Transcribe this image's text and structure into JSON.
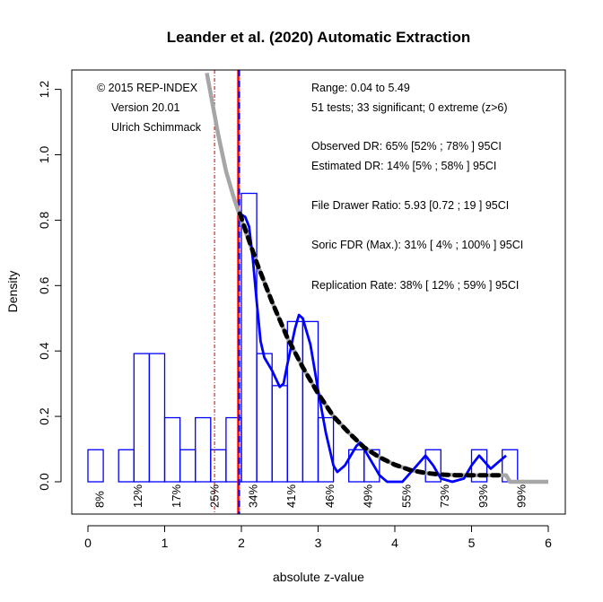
{
  "chart_data": {
    "type": "histogram",
    "title": "Leander et al. (2020) Automatic Extraction",
    "xlabel": "absolute z-value",
    "ylabel": "Density",
    "xlim": [
      0,
      6
    ],
    "ylim": [
      -0.1,
      1.25
    ],
    "xticks": [
      0,
      1,
      2,
      3,
      4,
      5,
      6
    ],
    "yticks": [
      0.0,
      0.2,
      0.4,
      0.6,
      0.8,
      1.0,
      1.2
    ],
    "ytick_labels": [
      "0.0",
      "0.2",
      "0.4",
      "0.6",
      "0.8",
      "1.0",
      "1.2"
    ],
    "bin_width": 0.2,
    "bins": [
      {
        "x0": 0.0,
        "density": 0.098
      },
      {
        "x0": 0.4,
        "density": 0.098
      },
      {
        "x0": 0.6,
        "density": 0.392
      },
      {
        "x0": 0.8,
        "density": 0.392
      },
      {
        "x0": 1.0,
        "density": 0.196
      },
      {
        "x0": 1.2,
        "density": 0.098
      },
      {
        "x0": 1.4,
        "density": 0.196
      },
      {
        "x0": 1.6,
        "density": 0.098
      },
      {
        "x0": 1.8,
        "density": 0.196
      },
      {
        "x0": 2.0,
        "density": 0.882
      },
      {
        "x0": 2.2,
        "density": 0.392
      },
      {
        "x0": 2.4,
        "density": 0.294
      },
      {
        "x0": 2.6,
        "density": 0.49
      },
      {
        "x0": 2.8,
        "density": 0.49
      },
      {
        "x0": 3.0,
        "density": 0.196
      },
      {
        "x0": 3.4,
        "density": 0.098
      },
      {
        "x0": 3.6,
        "density": 0.098
      },
      {
        "x0": 4.4,
        "density": 0.098
      },
      {
        "x0": 5.0,
        "density": 0.098
      },
      {
        "x0": 5.4,
        "density": 0.098
      }
    ],
    "series": [
      {
        "name": "z-curve fit",
        "color": "#a6a6a6",
        "x": [
          1.55,
          1.7,
          1.8,
          1.9,
          2.0,
          2.2,
          2.4,
          2.6,
          2.8,
          3.0,
          3.2,
          3.4,
          3.6,
          3.8,
          4.0,
          4.2,
          4.4,
          4.6,
          5.0,
          5.45,
          5.5,
          6.0
        ],
        "y": [
          1.25,
          1.06,
          0.95,
          0.87,
          0.8,
          0.67,
          0.55,
          0.44,
          0.35,
          0.27,
          0.2,
          0.15,
          0.105,
          0.075,
          0.052,
          0.036,
          0.027,
          0.022,
          0.02,
          0.02,
          0.0,
          0.0
        ]
      },
      {
        "name": "kernel density",
        "color": "#0000ff",
        "x": [
          1.98,
          2.05,
          2.1,
          2.15,
          2.2,
          2.25,
          2.3,
          2.4,
          2.5,
          2.55,
          2.6,
          2.7,
          2.75,
          2.8,
          2.9,
          3.0,
          3.1,
          3.2,
          3.25,
          3.35,
          3.5,
          3.55,
          3.65,
          3.8,
          3.9,
          4.1,
          4.25,
          4.4,
          4.5,
          4.6,
          4.75,
          4.9,
          5.0,
          5.1,
          5.25,
          5.35,
          5.45
        ],
        "y": [
          0.82,
          0.81,
          0.78,
          0.68,
          0.55,
          0.43,
          0.38,
          0.34,
          0.29,
          0.3,
          0.36,
          0.47,
          0.51,
          0.5,
          0.42,
          0.28,
          0.15,
          0.05,
          0.03,
          0.05,
          0.11,
          0.12,
          0.08,
          0.02,
          0.0,
          0.0,
          0.04,
          0.08,
          0.05,
          0.01,
          0.0,
          0.01,
          0.05,
          0.08,
          0.04,
          0.06,
          0.08
        ]
      },
      {
        "name": "model density (dashed)",
        "color": "#000000",
        "x": [
          1.98,
          2.2,
          2.4,
          2.6,
          2.8,
          3.0,
          3.2,
          3.4,
          3.6,
          3.8,
          4.0,
          4.2,
          4.4,
          4.6,
          4.8,
          5.0,
          5.2,
          5.4
        ],
        "y": [
          0.82,
          0.67,
          0.55,
          0.44,
          0.35,
          0.27,
          0.2,
          0.15,
          0.105,
          0.075,
          0.052,
          0.036,
          0.027,
          0.022,
          0.02,
          0.02,
          0.02,
          0.02
        ]
      }
    ],
    "vlines": [
      {
        "name": "significance-line",
        "x": 1.96,
        "color": "#ff0000"
      },
      {
        "name": "significance-dashed",
        "x": 1.96,
        "color": "#0000ff"
      },
      {
        "name": "marginal-line",
        "x": 1.65,
        "color": "#cc0000"
      }
    ],
    "power_labels": [
      {
        "x": 0.25,
        "label": "8%"
      },
      {
        "x": 0.75,
        "label": "12%"
      },
      {
        "x": 1.25,
        "label": "17%"
      },
      {
        "x": 1.75,
        "label": "25%"
      },
      {
        "x": 2.25,
        "label": "34%"
      },
      {
        "x": 2.75,
        "label": "41%"
      },
      {
        "x": 3.25,
        "label": "46%"
      },
      {
        "x": 3.75,
        "label": "49%"
      },
      {
        "x": 4.25,
        "label": "55%"
      },
      {
        "x": 4.75,
        "label": "73%"
      },
      {
        "x": 5.25,
        "label": "93%"
      },
      {
        "x": 5.75,
        "label": "99%"
      }
    ],
    "credits": [
      "© 2015 REP-INDEX",
      "Version 20.01",
      "Ulrich Schimmack"
    ],
    "stats": [
      "Range: 0.04 to 5.49",
      "51 tests; 33 significant; 0 extreme (z>6)",
      "Observed DR: 65% [52% ; 78% ] 95CI",
      "Estimated DR: 14% [5% ; 58% ] 95CI",
      "File Drawer Ratio: 5.93 [0.72 ; 19 ] 95CI",
      "Soric FDR (Max.): 31% [ 4% ; 100% ] 95CI",
      "Replication Rate: 38% [ 12% ; 59% ] 95CI"
    ]
  }
}
